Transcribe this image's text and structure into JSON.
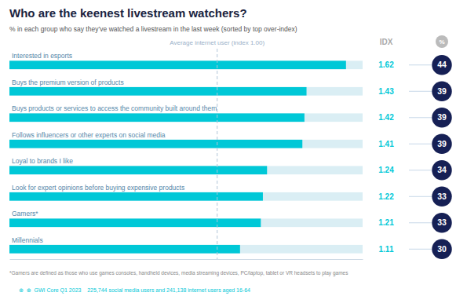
{
  "chart_data": {
    "type": "bar",
    "orientation": "horizontal",
    "title": "Who are the keenest livestream watchers?",
    "subtitle": "% in each group who say they’ve watched a livestream in the last week (sorted by top over-index)",
    "categories": [
      "Interested in esports",
      "Buys the premium version of products",
      "Buys products or services to access the community built around them",
      "Follows influencers or other experts on social media",
      "Loyal to brands I like",
      "Look for expert opinions before buying expensive products",
      "Gamers*",
      "Millennials"
    ],
    "values": [
      1.62,
      1.43,
      1.42,
      1.41,
      1.24,
      1.22,
      1.21,
      1.11
    ],
    "percentages": [
      44,
      39,
      39,
      39,
      34,
      33,
      33,
      30
    ],
    "average": 1.0,
    "average_label": "Average internet user (index 1.00)",
    "idx_header": "IDX",
    "pct_header": "%",
    "xlim": [
      0,
      1.7
    ],
    "color": "#00c8d7",
    "data_labels": true,
    "tick_labels": false,
    "grid": false,
    "footnote": "*Gamers are defined as those who use games consoles, handheld devices, media streaming devices, PC/laptop, tablet or VR headsets to play games",
    "footer": "⊕  ⊕  GWI Core Q1 2023    225,744 social media users and 241,138 internet users aged 16-64"
  }
}
